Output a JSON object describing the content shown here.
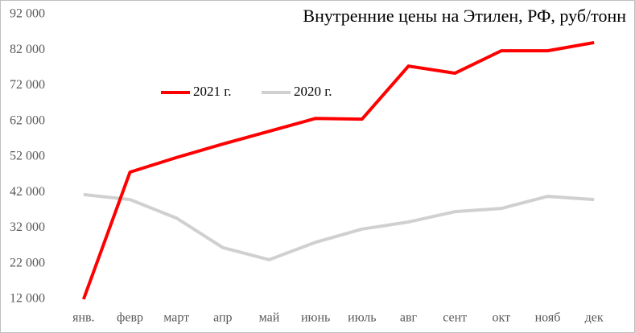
{
  "chart_data": {
    "type": "line",
    "title": "Внутренние цены на Этилен, РФ, руб/тонн",
    "categories": [
      "янв.",
      "февр",
      "март",
      "апр",
      "май",
      "июнь",
      "июль",
      "авг",
      "сент",
      "окт",
      "нояб",
      "дек"
    ],
    "series": [
      {
        "name": "2021 г.",
        "color": "#ff0000",
        "values": [
          12000,
          47700,
          51800,
          55600,
          59200,
          62800,
          62600,
          77500,
          75500,
          81800,
          81800,
          84100
        ]
      },
      {
        "name": "2020 г.",
        "color": "#d0d0d0",
        "values": [
          41400,
          40000,
          34800,
          26500,
          23100,
          28000,
          31700,
          33700,
          36600,
          37500,
          40900,
          40000
        ]
      }
    ],
    "ylim": [
      12000,
      92000
    ],
    "yticks": [
      {
        "value": 12000,
        "label": "12 000"
      },
      {
        "value": 22000,
        "label": "22 000"
      },
      {
        "value": 32000,
        "label": "32 000"
      },
      {
        "value": 42000,
        "label": "42 000"
      },
      {
        "value": 52000,
        "label": "52 000"
      },
      {
        "value": 62000,
        "label": "62 000"
      },
      {
        "value": 72000,
        "label": "72 000"
      },
      {
        "value": 82000,
        "label": "82 000"
      },
      {
        "value": 92000,
        "label": "92 000"
      }
    ],
    "grid": false,
    "legend": "top"
  }
}
